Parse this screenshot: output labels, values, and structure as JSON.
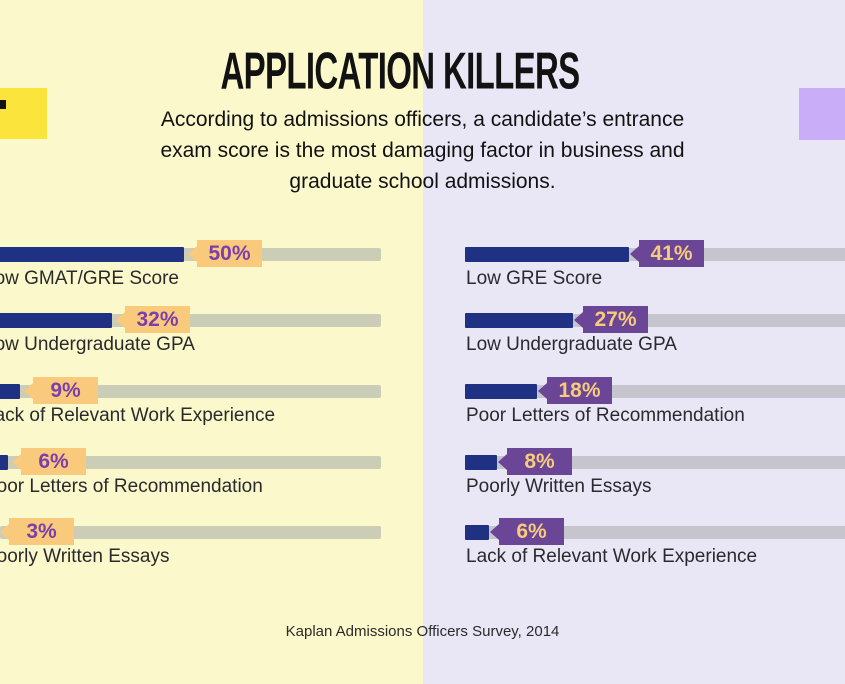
{
  "title": "APPLICATION KILLERS",
  "subtitle_lines": [
    "According to admissions officers, a candidate’s entrance",
    "exam score is the most damaging factor in business and",
    "graduate school admissions."
  ],
  "footer": "Kaplan Admissions Officers Survey, 2014",
  "colors": {
    "bg_left": "#FBF9CB",
    "bg_right": "#E9E6F6",
    "accent_yellow": "#FBE53C",
    "accent_purple": "#C9ADF8",
    "bar_navy": "#1F3182",
    "track_left": "#CBCDB6",
    "track_right": "#C6C4CD",
    "tag_left_bg": "#F9CA7B",
    "tag_left_text": "#7C3FA9",
    "tag_right_bg": "#6B4596",
    "tag_right_text": "#F6CB7D"
  },
  "chart_data": [
    {
      "type": "bar",
      "panel": "left",
      "orientation": "horizontal",
      "categories": [
        "Low GMAT/GRE Score",
        "Low Undergraduate GPA",
        "Lack of Relevant Work Experience",
        "Poor Letters of Recommendation",
        "Poorly Written Essays"
      ],
      "values": [
        50,
        32,
        9,
        6,
        3
      ],
      "value_labels": [
        "50%",
        "32%",
        "9%",
        "6%",
        "3%"
      ],
      "xlim": [
        0,
        100
      ],
      "grid": false,
      "legend": false
    },
    {
      "type": "bar",
      "panel": "right",
      "orientation": "horizontal",
      "categories": [
        "Low GRE Score",
        "Low Undergraduate GPA",
        "Poor Letters of Recommendation",
        "Poorly Written Essays",
        "Lack of Relevant Work Experience"
      ],
      "values": [
        41,
        27,
        18,
        8,
        6
      ],
      "value_labels": [
        "41%",
        "27%",
        "18%",
        "8%",
        "6%"
      ],
      "xlim": [
        0,
        100
      ],
      "grid": false,
      "legend": false
    }
  ]
}
